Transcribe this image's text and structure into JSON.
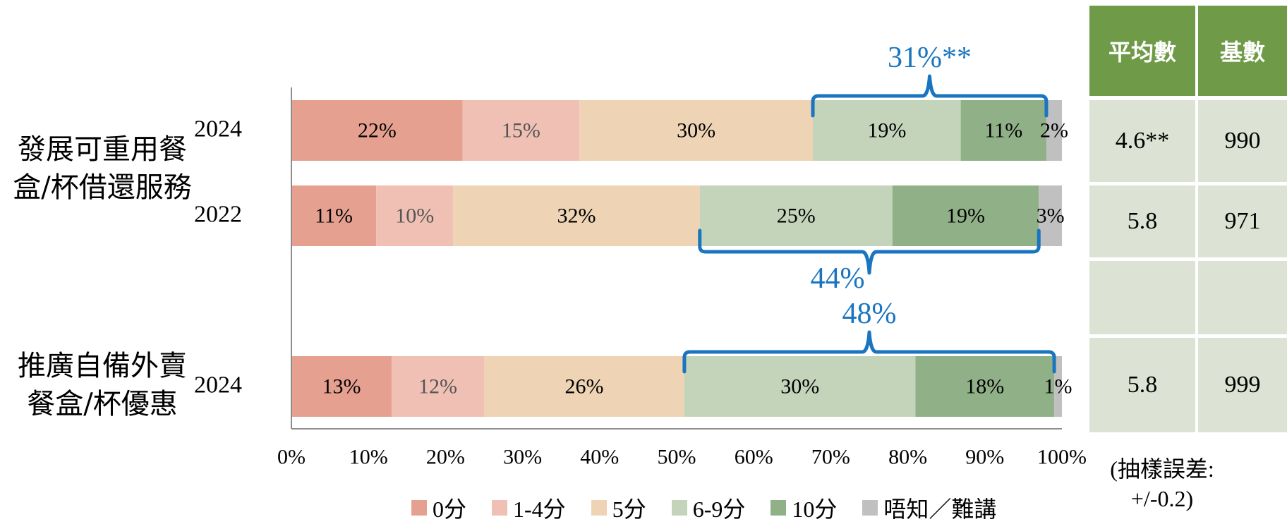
{
  "chart_data": {
    "type": "bar",
    "orientation": "horizontal",
    "stacked": true,
    "x_ticks": [
      "0%",
      "10%",
      "20%",
      "30%",
      "40%",
      "50%",
      "60%",
      "70%",
      "80%",
      "90%",
      "100%"
    ],
    "xlim": [
      0,
      100
    ],
    "legend_position": "bottom",
    "series": [
      {
        "name": "0分",
        "color": "#e5a090"
      },
      {
        "name": "1-4分",
        "color": "#f0c0b4"
      },
      {
        "name": "5分",
        "color": "#eed3b5"
      },
      {
        "name": "6-9分",
        "color": "#c3d4bb"
      },
      {
        "name": "10分",
        "color": "#90b087"
      },
      {
        "name": "唔知／難講",
        "color": "#c0c0c0"
      }
    ],
    "groups": [
      {
        "label_lines": [
          "發展可重用餐",
          "盒/杯借還服務"
        ],
        "rows": [
          {
            "year": "2024",
            "values": [
              22,
              15,
              30,
              19,
              11,
              2
            ],
            "labels": [
              "22%",
              "15%",
              "30%",
              "19%",
              "11%",
              "2%"
            ],
            "bracket": {
              "text": "31%**",
              "placement": "above"
            }
          },
          {
            "year": "2022",
            "values": [
              11,
              10,
              32,
              25,
              19,
              3
            ],
            "labels": [
              "11%",
              "10%",
              "32%",
              "25%",
              "19%",
              "3%"
            ],
            "bracket": {
              "text": "44%",
              "placement": "below"
            }
          }
        ]
      },
      {
        "label_lines": [
          "推廣自備外賣",
          "餐盒/杯優惠"
        ],
        "rows": [
          {
            "year": "2024",
            "values": [
              13,
              12,
              26,
              30,
              18,
              1
            ],
            "labels": [
              "13%",
              "12%",
              "26%",
              "30%",
              "18%",
              "1%"
            ],
            "bracket": {
              "text": "48%",
              "placement": "above"
            }
          }
        ]
      }
    ],
    "bracket_color": "#1a75c0"
  },
  "table": {
    "headers": [
      "平均數",
      "基數"
    ],
    "rows": [
      [
        "4.6**",
        "990"
      ],
      [
        "5.8",
        "971"
      ],
      [
        "",
        ""
      ],
      [
        "5.8",
        "999"
      ]
    ]
  },
  "note_lines": [
    "(抽樣誤差:",
    "+/-0.2)"
  ]
}
